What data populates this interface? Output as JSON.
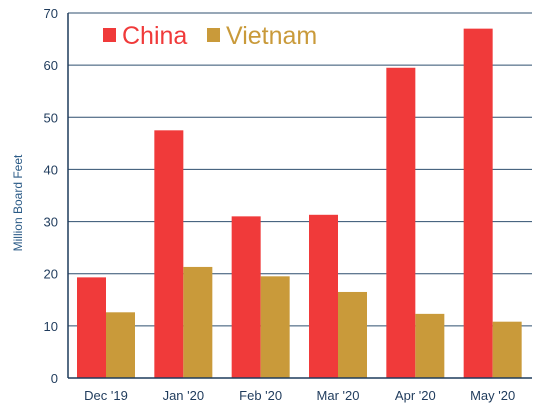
{
  "chart_data": {
    "type": "bar",
    "title": "",
    "xlabel": "",
    "ylabel": "Million Board Feet",
    "ylim": [
      0,
      70
    ],
    "yticks": [
      0,
      10,
      20,
      30,
      40,
      50,
      60,
      70
    ],
    "grid": true,
    "legend_position": "top-left",
    "categories": [
      "Dec '19",
      "Jan '20",
      "Feb '20",
      "Mar '20",
      "Apr '20",
      "May '20"
    ],
    "series": [
      {
        "name": "China",
        "color": "#f03a3a",
        "values": [
          19.3,
          47.5,
          31.0,
          31.3,
          59.5,
          67.0
        ]
      },
      {
        "name": "Vietnam",
        "color": "#c99a3a",
        "values": [
          12.6,
          21.3,
          19.5,
          16.5,
          12.3,
          10.8
        ]
      }
    ]
  }
}
